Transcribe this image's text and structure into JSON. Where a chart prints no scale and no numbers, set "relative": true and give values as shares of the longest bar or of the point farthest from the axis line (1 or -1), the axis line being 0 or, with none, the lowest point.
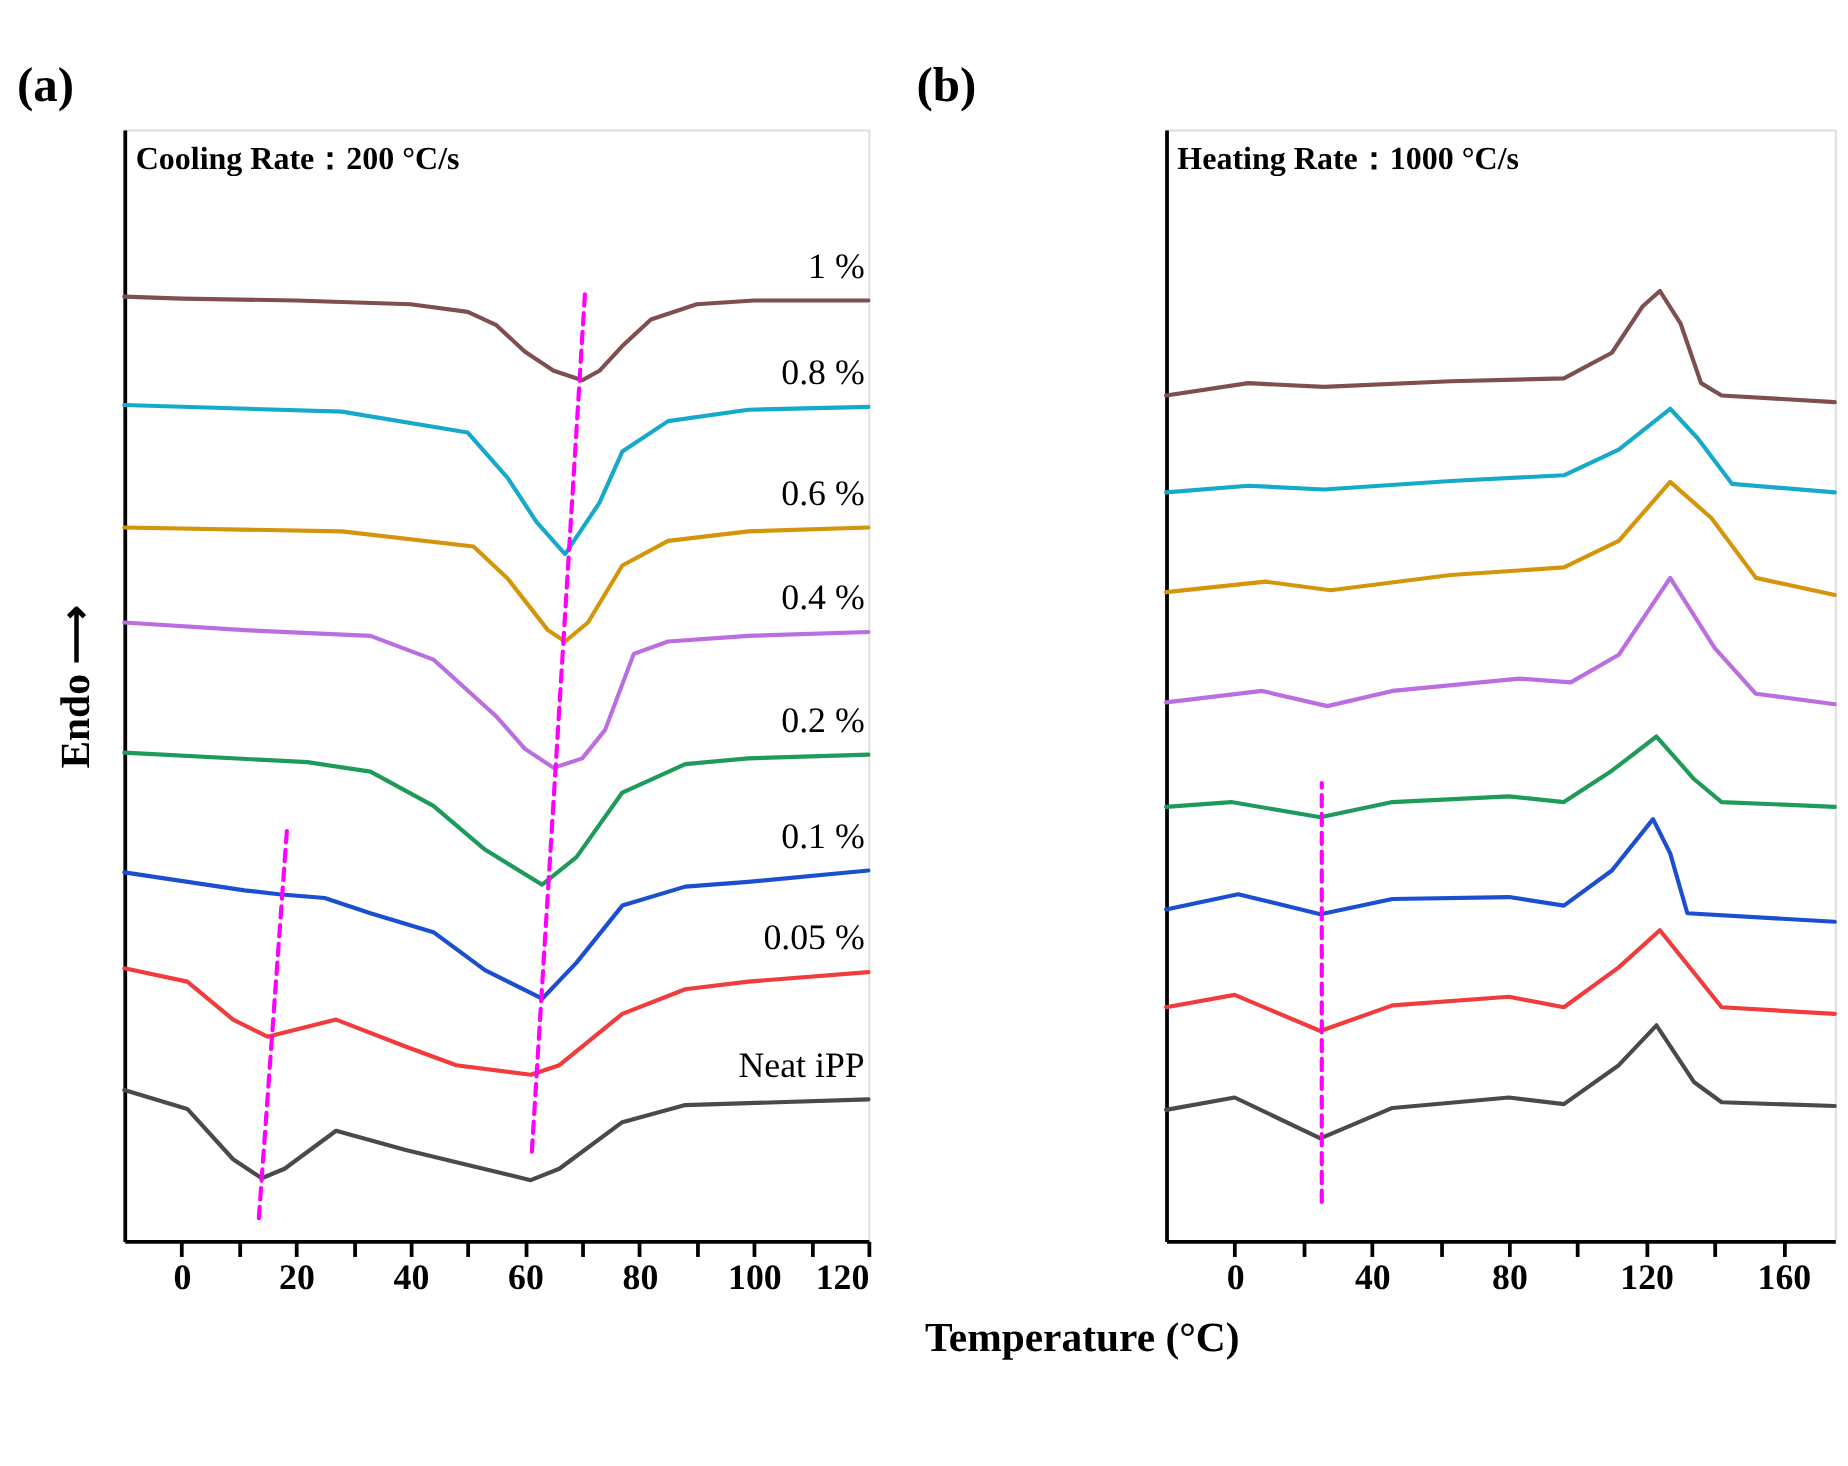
{
  "chart_data": [
    {
      "type": "line",
      "title": "(a)",
      "ylabel": "Endo ⟶",
      "annotations": [
        "Cooling Rate：200 °C/s"
      ],
      "relative": true,
      "xlim": [
        -10,
        120
      ],
      "xticks": [
        0,
        {
          "value": 10,
          "label": null
        },
        20,
        {
          "value": 30,
          "label": null
        },
        40,
        {
          "value": 50,
          "label": null
        },
        60,
        {
          "value": 70,
          "label": null
        },
        80,
        {
          "value": 90,
          "label": null
        },
        100,
        {
          "value": 110,
          "label": null
        },
        120
      ],
      "series": [
        {
          "name": "1 %",
          "color": "#7f4f4f",
          "x": [
            -10,
            0,
            20,
            40,
            50,
            55,
            60,
            65,
            70,
            73,
            77,
            82,
            90,
            100,
            120
          ],
          "values": [
            0.994,
            0.992,
            0.99,
            0.986,
            0.978,
            0.964,
            0.936,
            0.916,
            0.906,
            0.916,
            0.942,
            0.97,
            0.986,
            0.99,
            0.99
          ]
        },
        {
          "name": "0.8 %",
          "color": "#17a9c9",
          "x": [
            -10,
            28,
            50,
            57,
            62,
            67,
            73,
            77,
            85,
            99,
            120
          ],
          "values": [
            0.88,
            0.873,
            0.851,
            0.803,
            0.757,
            0.723,
            0.777,
            0.831,
            0.863,
            0.875,
            0.878
          ]
        },
        {
          "name": "0.6 %",
          "color": "#d4950b",
          "x": [
            -10,
            28,
            51,
            57,
            64,
            67,
            71,
            77,
            85,
            99,
            120
          ],
          "values": [
            0.751,
            0.747,
            0.731,
            0.697,
            0.643,
            0.631,
            0.651,
            0.711,
            0.737,
            0.747,
            0.751
          ]
        },
        {
          "name": "0.4 %",
          "color": "#bb6ee0",
          "x": [
            -10,
            11,
            33,
            44,
            55,
            60,
            65,
            70,
            74,
            79,
            85,
            99,
            120
          ],
          "values": [
            0.651,
            0.643,
            0.637,
            0.612,
            0.552,
            0.518,
            0.498,
            0.508,
            0.538,
            0.618,
            0.631,
            0.637,
            0.641
          ]
        },
        {
          "name": "0.2 %",
          "color": "#1e9a5a",
          "x": [
            -10,
            22,
            33,
            44,
            53,
            63,
            69,
            77,
            88,
            99,
            120
          ],
          "values": [
            0.514,
            0.504,
            0.494,
            0.458,
            0.412,
            0.375,
            0.404,
            0.472,
            0.502,
            0.508,
            0.512
          ]
        },
        {
          "name": "0.1 %",
          "color": "#1c4fd0",
          "x": [
            -10,
            11,
            17,
            25,
            33,
            44,
            53,
            63,
            69,
            77,
            88,
            99,
            120
          ],
          "values": [
            0.388,
            0.369,
            0.365,
            0.361,
            0.345,
            0.325,
            0.285,
            0.255,
            0.293,
            0.353,
            0.373,
            0.378,
            0.39
          ]
        },
        {
          "name": "0.05 %",
          "color": "#f03c3c",
          "x": [
            -10,
            1,
            9,
            15,
            27,
            39,
            48,
            61,
            66,
            77,
            88,
            99,
            120
          ],
          "values": [
            0.287,
            0.273,
            0.233,
            0.215,
            0.233,
            0.205,
            0.185,
            0.175,
            0.185,
            0.239,
            0.265,
            0.273,
            0.283
          ]
        },
        {
          "name": "Neat iPP",
          "color": "#4a4a4a",
          "x": [
            -10,
            1,
            9,
            14,
            18,
            27,
            39,
            50,
            61,
            66,
            77,
            88,
            99,
            120
          ],
          "values": [
            0.159,
            0.139,
            0.086,
            0.066,
            0.076,
            0.116,
            0.096,
            0.08,
            0.064,
            0.076,
            0.125,
            0.143,
            0.145,
            0.149
          ]
        },
        {
          "color": "#ff00ff",
          "line_style": "dashed",
          "x": [
            13.5,
            18.4
          ],
          "values": [
            0.024,
            0.432
          ]
        },
        {
          "color": "#ff00ff",
          "line_style": "dashed",
          "x": [
            61.2,
            70.5
          ],
          "values": [
            0.094,
            1.0
          ]
        }
      ]
    },
    {
      "type": "line",
      "title": "(b)",
      "xlabel": "Temperature (°C)",
      "annotations": [
        "Heating Rate：1000 °C/s"
      ],
      "relative": true,
      "xlim": [
        -20,
        175
      ],
      "xticks": [
        0,
        {
          "value": 20,
          "label": null
        },
        40,
        {
          "value": 60,
          "label": null
        },
        80,
        {
          "value": 100,
          "label": null
        },
        120,
        {
          "value": 140,
          "label": null
        },
        160
      ],
      "series": [
        {
          "color": "#7f4f4f",
          "x": [
            -20,
            4,
            26,
            63,
            96,
            110,
            119,
            124,
            130,
            136,
            142,
            175
          ],
          "values": [
            0.89,
            0.903,
            0.899,
            0.905,
            0.908,
            0.935,
            0.984,
            1.0,
            0.966,
            0.903,
            0.89,
            0.883
          ]
        },
        {
          "color": "#17a9c9",
          "x": [
            -20,
            4,
            26,
            63,
            96,
            112,
            127,
            135,
            145,
            175
          ],
          "values": [
            0.788,
            0.795,
            0.791,
            0.8,
            0.806,
            0.833,
            0.876,
            0.845,
            0.797,
            0.788
          ]
        },
        {
          "color": "#d4950b",
          "x": [
            -20,
            9,
            28,
            63,
            96,
            112,
            127,
            139,
            152,
            175
          ],
          "values": [
            0.683,
            0.694,
            0.685,
            0.701,
            0.709,
            0.737,
            0.799,
            0.761,
            0.698,
            0.68
          ]
        },
        {
          "color": "#bb6ee0",
          "x": [
            -20,
            8,
            27,
            46,
            83,
            98,
            112,
            127,
            140,
            152,
            175
          ],
          "values": [
            0.567,
            0.579,
            0.563,
            0.579,
            0.592,
            0.588,
            0.617,
            0.698,
            0.624,
            0.576,
            0.565
          ]
        },
        {
          "color": "#1e9a5a",
          "x": [
            -20,
            -1,
            25,
            46,
            80,
            96,
            110,
            123,
            134,
            142,
            175
          ],
          "values": [
            0.457,
            0.462,
            0.446,
            0.462,
            0.468,
            0.462,
            0.495,
            0.531,
            0.486,
            0.462,
            0.457
          ]
        },
        {
          "color": "#1c4fd0",
          "x": [
            -20,
            1,
            25,
            46,
            80,
            96,
            110,
            122,
            127,
            132,
            175
          ],
          "values": [
            0.349,
            0.365,
            0.344,
            0.36,
            0.362,
            0.353,
            0.39,
            0.444,
            0.408,
            0.345,
            0.336
          ]
        },
        {
          "color": "#f03c3c",
          "x": [
            -20,
            0,
            25,
            46,
            80,
            96,
            112,
            124,
            134,
            142,
            175
          ],
          "values": [
            0.246,
            0.259,
            0.221,
            0.248,
            0.257,
            0.246,
            0.288,
            0.327,
            0.282,
            0.246,
            0.239
          ]
        },
        {
          "color": "#4a4a4a",
          "x": [
            -20,
            0,
            25,
            46,
            80,
            96,
            112,
            123,
            134,
            142,
            175
          ],
          "values": [
            0.138,
            0.151,
            0.108,
            0.14,
            0.151,
            0.144,
            0.185,
            0.227,
            0.167,
            0.146,
            0.142
          ]
        },
        {
          "color": "#ff00ff",
          "line_style": "dashed",
          "x": [
            25.4,
            25.4
          ],
          "values": [
            0.041,
            0.482
          ]
        }
      ]
    }
  ]
}
